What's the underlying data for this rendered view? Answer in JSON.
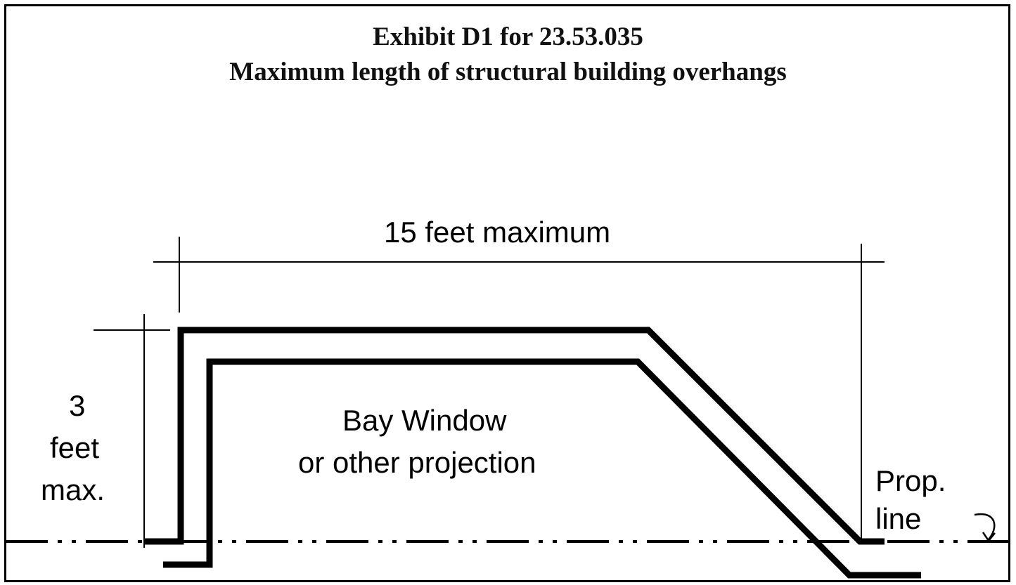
{
  "title": {
    "line1": "Exhibit D1 for 23.53.035",
    "line2": "Maximum length of structural building overhangs"
  },
  "labels": {
    "width_dimension": "15 feet maximum",
    "depth_line1": "3",
    "depth_line2": "feet",
    "depth_line3": "max.",
    "projection_line1": "Bay Window",
    "projection_line2": "or other projection",
    "prop_line1": "Prop.",
    "prop_line2": "line"
  },
  "colors": {
    "line": "#000000",
    "background": "#ffffff"
  }
}
